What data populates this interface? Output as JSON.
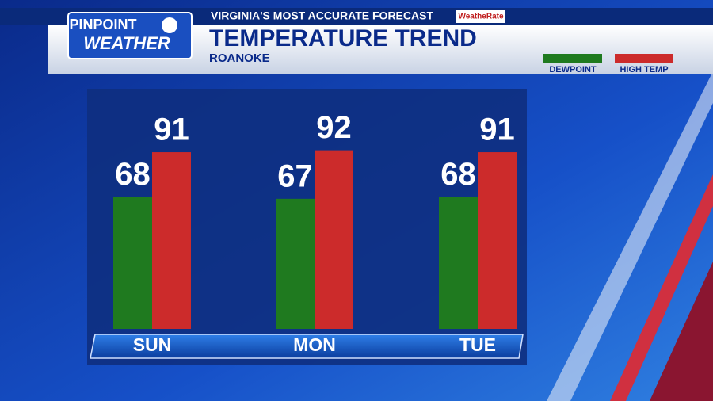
{
  "branding": {
    "logo_top": "PINPOINT",
    "logo_bottom": "WEATHER",
    "tagline": "VIRGINIA'S MOST ACCURATE FORECAST",
    "badge": "WeatheRate"
  },
  "chart_data": {
    "type": "bar",
    "title": "TEMPERATURE TREND",
    "subtitle": "ROANOKE",
    "categories": [
      "SUN",
      "MON",
      "TUE"
    ],
    "series": [
      {
        "name": "DEWPOINT",
        "color": "#1f7a1f",
        "values": [
          68,
          67,
          68
        ]
      },
      {
        "name": "HIGH TEMP",
        "color": "#cc2b2b",
        "values": [
          91,
          92,
          91
        ]
      }
    ]
  }
}
